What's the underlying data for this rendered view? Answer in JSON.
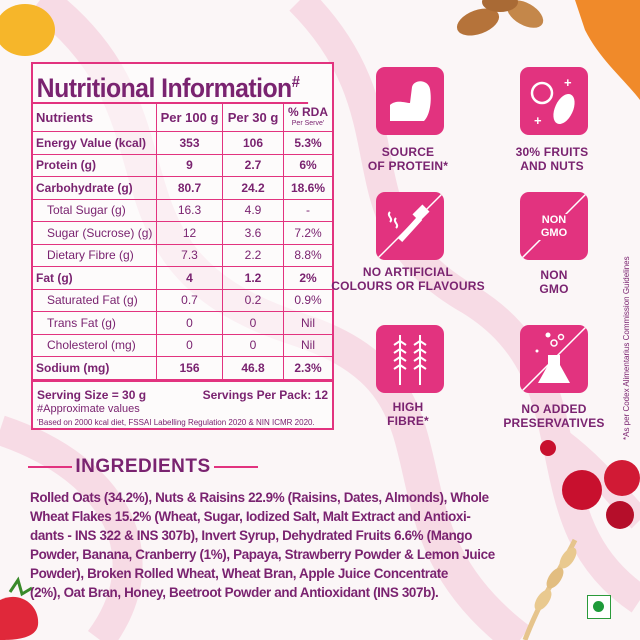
{
  "nutrition": {
    "title": "Nutritional Information",
    "title_mark": "#",
    "headers": {
      "nutrient": "Nutrients",
      "per100": "Per 100 g",
      "per30": "Per 30 g",
      "rda": "% RDA",
      "rda_sub": "Per Serve'"
    },
    "rows": [
      {
        "name": "Energy Value (kcal)",
        "per100": "353",
        "per30": "106",
        "rda": "5.3%"
      },
      {
        "name": "Protein (g)",
        "per100": "9",
        "per30": "2.7",
        "rda": "6%"
      },
      {
        "name": "Carbohydrate (g)",
        "per100": "80.7",
        "per30": "24.2",
        "rda": "18.6%"
      },
      {
        "name": "Total Sugar (g)",
        "per100": "16.3",
        "per30": "4.9",
        "rda": "-"
      },
      {
        "name": "Sugar (Sucrose) (g)",
        "per100": "12",
        "per30": "3.6",
        "rda": "7.2%"
      },
      {
        "name": "Dietary Fibre (g)",
        "per100": "7.3",
        "per30": "2.2",
        "rda": "8.8%"
      },
      {
        "name": "Fat (g)",
        "per100": "4",
        "per30": "1.2",
        "rda": "2%"
      },
      {
        "name": "Saturated Fat (g)",
        "per100": "0.7",
        "per30": "0.2",
        "rda": "0.9%"
      },
      {
        "name": "Trans Fat (g)",
        "per100": "0",
        "per30": "0",
        "rda": "Nil"
      },
      {
        "name": "Cholesterol (mg)",
        "per100": "0",
        "per30": "0",
        "rda": "Nil"
      },
      {
        "name": "Sodium (mg)",
        "per100": "156",
        "per30": "46.8",
        "rda": "2.3%"
      }
    ],
    "serving_size": "Serving Size = 30 g",
    "servings_per_pack": "Servings Per Pack: 12",
    "approx_note": "#Approximate values",
    "basis_note": "'Based on 2000 kcal diet, FSSAI Labelling Regulation 2020 & NIN ICMR 2020."
  },
  "claims": [
    {
      "icon": "flexed-arm-icon",
      "label1": "SOURCE",
      "label2": "OF PROTEIN*"
    },
    {
      "icon": "apple-almond-icon",
      "label1": "30% FRUITS",
      "label2": "AND NUTS"
    },
    {
      "icon": "dropper-crossed-icon",
      "label1": "NO ARTIFICIAL",
      "label2": "COLOURS OR FLAVOURS"
    },
    {
      "icon": "non-gmo-icon",
      "label1": "NON",
      "label2": "GMO",
      "tile_text1": "NON",
      "tile_text2": "GMO"
    },
    {
      "icon": "wheat-icon",
      "label1": "HIGH",
      "label2": "FIBRE*"
    },
    {
      "icon": "flask-crossed-icon",
      "label1": "NO ADDED",
      "label2": "PRESERVATIVES"
    }
  ],
  "side_note": "*As per Codex Alimentarius Commission Guidelines",
  "ingredients": {
    "heading": "INGREDIENTS",
    "lines": [
      "Rolled Oats (34.2%), Nuts & Raisins 22.9% (Raisins, Dates, Almonds), Whole",
      "Wheat Flakes 15.2% (Wheat, Sugar, Iodized Salt, Malt Extract and Antioxi-",
      "dants - INS 322 & INS 307b), Invert Syrup, Dehydrated Fruits 6.6% (Mango",
      "Powder, Banana, Cranberry (1%), Papaya, Strawberry Powder & Lemon Juice",
      "Powder), Broken Rolled Wheat, Wheat Bran, Apple Juice Concentrate",
      "(2%), Oat Bran, Honey, Beetroot Powder and Antioxidant (INS 307b)."
    ]
  },
  "colors": {
    "purple": "#7a2370",
    "pink": "#e2337f",
    "background": "#fbf6f7",
    "veg_mark": "#1e9b3a"
  }
}
